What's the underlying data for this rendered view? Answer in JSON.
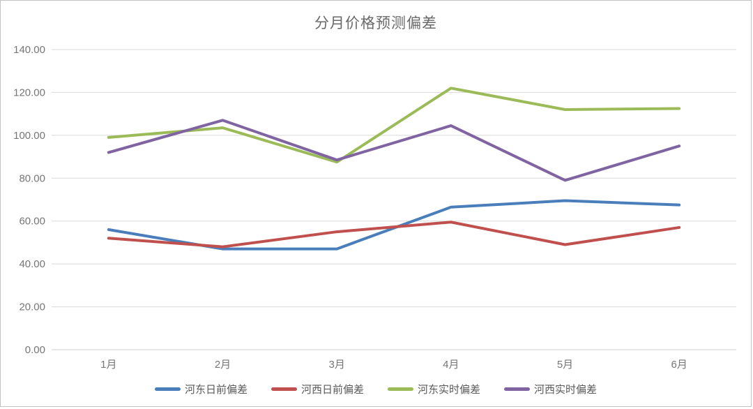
{
  "chart_data": {
    "type": "line",
    "title": "分月价格预测偏差",
    "categories": [
      "1月",
      "2月",
      "3月",
      "4月",
      "5月",
      "6月"
    ],
    "series": [
      {
        "name": "河东日前偏差",
        "color": "#4a7ebb",
        "values": [
          56,
          47,
          47,
          66.5,
          69.5,
          67.5
        ]
      },
      {
        "name": "河西日前偏差",
        "color": "#c0504d",
        "values": [
          52,
          48,
          55,
          59.5,
          49,
          57
        ]
      },
      {
        "name": "河东实时偏差",
        "color": "#9bbb59",
        "values": [
          99,
          103.5,
          87.5,
          122,
          112,
          112.5
        ]
      },
      {
        "name": "河西实时偏差",
        "color": "#8064a2",
        "values": [
          92,
          107,
          88.5,
          104.5,
          79,
          95
        ]
      }
    ],
    "ylim": [
      0,
      140
    ],
    "ytick_step": 20,
    "ytick_labels": [
      "0.00",
      "20.00",
      "40.00",
      "60.00",
      "80.00",
      "100.00",
      "120.00",
      "140.00"
    ],
    "grid": true,
    "legend_position": "bottom",
    "xlabel": "",
    "ylabel": ""
  },
  "style": {
    "grid_color": "#d9d9d9",
    "baseline_color": "#cfcfcf",
    "tick_color": "#767676",
    "title_color": "#696969",
    "legend_text_color": "#595959",
    "line_width": 4
  }
}
